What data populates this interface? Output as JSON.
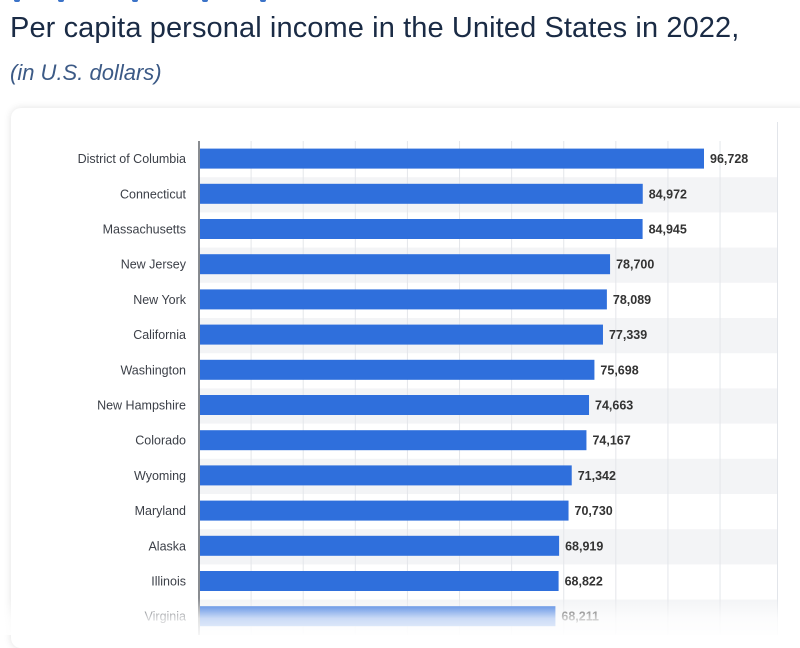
{
  "header": {
    "title": "Per capita personal income in the United States in 2022,",
    "subtitle": "(in U.S. dollars)"
  },
  "colors": {
    "bar": "#2f6fdc",
    "title": "#1a2b45",
    "subtitle": "#3c5a86",
    "stripe": "#f3f4f6"
  },
  "chart_data": {
    "type": "bar",
    "orientation": "horizontal",
    "title": "Per capita personal income in the United States in 2022,",
    "subtitle": "(in U.S. dollars)",
    "xlabel": "",
    "ylabel": "",
    "xlim": [
      0,
      105000
    ],
    "grid": true,
    "categories": [
      "District of Columbia",
      "Connecticut",
      "Massachusetts",
      "New Jersey",
      "New York",
      "California",
      "Washington",
      "New Hampshire",
      "Colorado",
      "Wyoming",
      "Maryland",
      "Alaska",
      "Illinois",
      "Virginia"
    ],
    "values": [
      96728,
      84972,
      84945,
      78700,
      78089,
      77339,
      75698,
      74663,
      74167,
      71342,
      70730,
      68919,
      68822,
      68211
    ],
    "value_labels": [
      "96,728",
      "84,972",
      "84,945",
      "78,700",
      "78,089",
      "77,339",
      "75,698",
      "74,663",
      "74,167",
      "71,342",
      "70,730",
      "68,919",
      "68,822",
      "68,211"
    ]
  }
}
